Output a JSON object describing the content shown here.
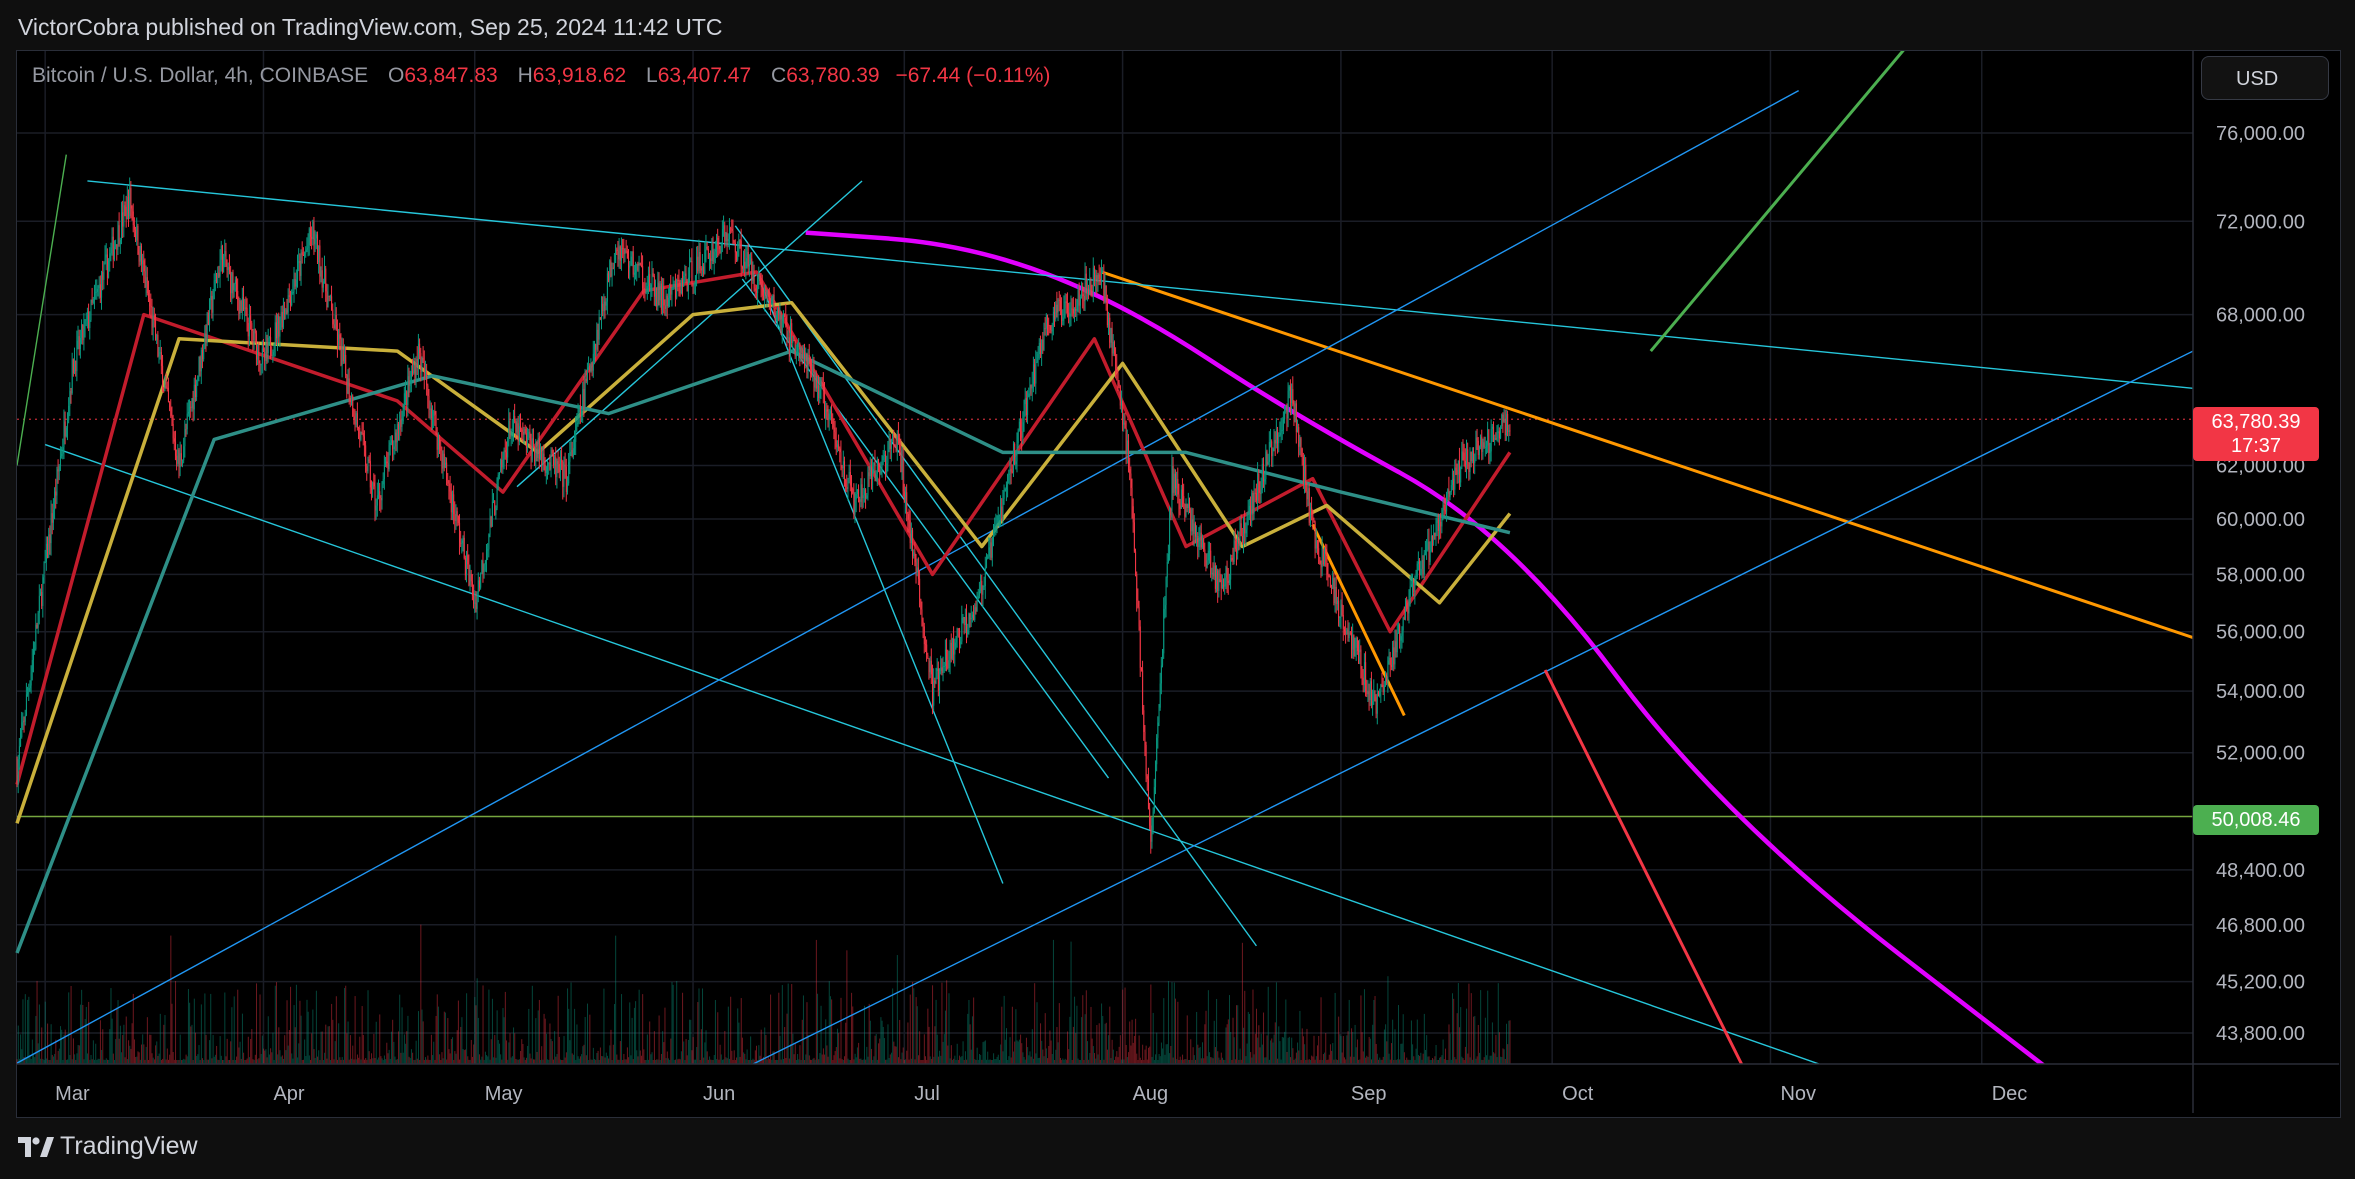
{
  "header": {
    "publisher": "VictorCobra published on TradingView.com, Sep 25, 2024 11:42 UTC"
  },
  "legend": {
    "symbol": "Bitcoin / U.S. Dollar, 4h, COINBASE",
    "open_label": "O",
    "open": "63,847.83",
    "high_label": "H",
    "high": "63,918.62",
    "low_label": "L",
    "low": "63,407.47",
    "close_label": "C",
    "close": "63,780.39",
    "change": "−67.44 (−0.11%)"
  },
  "currency_button": "USD",
  "last_price": {
    "value": "63,780.39",
    "countdown": "17:37",
    "color": "#f23645"
  },
  "support_level": {
    "value": "50,008.46",
    "color": "#4caf50"
  },
  "footer": {
    "brand": "TradingView",
    "logo_icon": "tradingview-logo-icon"
  },
  "colors": {
    "background": "#000000",
    "down": "#f23645",
    "up": "#089981",
    "magenta_curve": "#e100ff",
    "orange_line": "#ff9800",
    "cyan_lines": "#26c6da",
    "blue_lines": "#2196f3",
    "green_line": "#4caf50",
    "red_line": "#f23645"
  },
  "chart_data": {
    "type": "candlestick",
    "title": "Bitcoin / U.S. Dollar, 4h, COINBASE",
    "x_ticks": [
      "Mar",
      "Apr",
      "May",
      "Jun",
      "Jul",
      "Aug",
      "Sep",
      "Oct",
      "Nov",
      "Dec"
    ],
    "y_ticks": [
      "76,000.00",
      "72,000.00",
      "68,000.00",
      "62,000.00",
      "60,000.00",
      "58,000.00",
      "56,000.00",
      "54,000.00",
      "52,000.00",
      "48,400.00",
      "46,800.00",
      "45,200.00",
      "43,800.00"
    ],
    "y_tick_values": [
      76000,
      72000,
      68000,
      62000,
      60000,
      58000,
      56000,
      54000,
      52000,
      48400,
      46800,
      45200,
      43800
    ],
    "y_scale": "log",
    "price_path": [
      {
        "date": "2024-02-26",
        "price": 51500
      },
      {
        "date": "2024-03-05",
        "price": 66000
      },
      {
        "date": "2024-03-13",
        "price": 73000
      },
      {
        "date": "2024-03-20",
        "price": 62000
      },
      {
        "date": "2024-03-26",
        "price": 70500
      },
      {
        "date": "2024-04-01",
        "price": 66000
      },
      {
        "date": "2024-04-08",
        "price": 71500
      },
      {
        "date": "2024-04-17",
        "price": 60500
      },
      {
        "date": "2024-04-23",
        "price": 66500
      },
      {
        "date": "2024-05-01",
        "price": 57000
      },
      {
        "date": "2024-05-06",
        "price": 63500
      },
      {
        "date": "2024-05-14",
        "price": 61500
      },
      {
        "date": "2024-05-21",
        "price": 71000
      },
      {
        "date": "2024-05-28",
        "price": 68500
      },
      {
        "date": "2024-06-06",
        "price": 71500
      },
      {
        "date": "2024-06-10",
        "price": 69500
      },
      {
        "date": "2024-06-19",
        "price": 65000
      },
      {
        "date": "2024-06-24",
        "price": 60500
      },
      {
        "date": "2024-06-30",
        "price": 63000
      },
      {
        "date": "2024-07-05",
        "price": 54000
      },
      {
        "date": "2024-07-12",
        "price": 57500
      },
      {
        "date": "2024-07-21",
        "price": 67500
      },
      {
        "date": "2024-07-29",
        "price": 69800
      },
      {
        "date": "2024-08-02",
        "price": 62000
      },
      {
        "date": "2024-08-05",
        "price": 49000
      },
      {
        "date": "2024-08-08",
        "price": 61500
      },
      {
        "date": "2024-08-15",
        "price": 57500
      },
      {
        "date": "2024-08-25",
        "price": 64800
      },
      {
        "date": "2024-08-28",
        "price": 59500
      },
      {
        "date": "2024-09-06",
        "price": 53500
      },
      {
        "date": "2024-09-12",
        "price": 58000
      },
      {
        "date": "2024-09-18",
        "price": 62000
      },
      {
        "date": "2024-09-25",
        "price": 63780
      }
    ],
    "current_price": 63780.39,
    "horizontal_level": 50008.46,
    "moving_averages": [
      {
        "color": "#c21c2c",
        "points": [
          {
            "date": "2024-02-26",
            "price": 51000
          },
          {
            "date": "2024-03-15",
            "price": 68000
          },
          {
            "date": "2024-04-20",
            "price": 64500
          },
          {
            "date": "2024-05-05",
            "price": 61000
          },
          {
            "date": "2024-05-25",
            "price": 69000
          },
          {
            "date": "2024-06-10",
            "price": 69800
          },
          {
            "date": "2024-07-05",
            "price": 58000
          },
          {
            "date": "2024-07-28",
            "price": 67000
          },
          {
            "date": "2024-08-10",
            "price": 59000
          },
          {
            "date": "2024-08-28",
            "price": 61500
          },
          {
            "date": "2024-09-08",
            "price": 56000
          },
          {
            "date": "2024-09-25",
            "price": 62500
          }
        ]
      },
      {
        "color": "#c9b03b",
        "points": [
          {
            "date": "2024-02-26",
            "price": 49800
          },
          {
            "date": "2024-03-20",
            "price": 67000
          },
          {
            "date": "2024-04-20",
            "price": 66500
          },
          {
            "date": "2024-05-10",
            "price": 62500
          },
          {
            "date": "2024-06-01",
            "price": 68000
          },
          {
            "date": "2024-06-15",
            "price": 68500
          },
          {
            "date": "2024-07-12",
            "price": 59000
          },
          {
            "date": "2024-08-01",
            "price": 66000
          },
          {
            "date": "2024-08-18",
            "price": 59000
          },
          {
            "date": "2024-08-30",
            "price": 60500
          },
          {
            "date": "2024-09-15",
            "price": 57000
          },
          {
            "date": "2024-09-25",
            "price": 60200
          }
        ]
      },
      {
        "color": "#2e8f87",
        "points": [
          {
            "date": "2024-02-26",
            "price": 46000
          },
          {
            "date": "2024-03-25",
            "price": 63000
          },
          {
            "date": "2024-04-25",
            "price": 65500
          },
          {
            "date": "2024-05-20",
            "price": 64000
          },
          {
            "date": "2024-06-15",
            "price": 66500
          },
          {
            "date": "2024-07-15",
            "price": 62500
          },
          {
            "date": "2024-08-10",
            "price": 62500
          },
          {
            "date": "2024-09-01",
            "price": 61000
          },
          {
            "date": "2024-09-25",
            "price": 59500
          }
        ]
      }
    ],
    "drawings": [
      {
        "kind": "curve",
        "color": "#e100ff",
        "points": [
          {
            "date": "2024-06-17",
            "price": 71500
          },
          {
            "date": "2024-07-10",
            "price": 71000
          },
          {
            "date": "2024-08-01",
            "price": 68500
          },
          {
            "date": "2024-08-25",
            "price": 64000
          },
          {
            "date": "2024-09-25",
            "price": 59500
          },
          {
            "date": "2024-10-25",
            "price": 50000
          },
          {
            "date": "2024-12-15",
            "price": 42200
          }
        ]
      },
      {
        "kind": "line",
        "color": "#ff9800",
        "points": [
          {
            "date": "2024-07-29",
            "price": 69800
          },
          {
            "date": "2024-12-31",
            "price": 55800
          }
        ]
      },
      {
        "kind": "line",
        "color": "#ff9800",
        "points": [
          {
            "date": "2024-08-28",
            "price": 59800
          },
          {
            "date": "2024-09-10",
            "price": 53200
          }
        ]
      },
      {
        "kind": "line",
        "color": "#26c6da",
        "points": [
          {
            "date": "2024-03-07",
            "price": 73800
          },
          {
            "date": "2024-12-31",
            "price": 65000
          }
        ]
      },
      {
        "kind": "line",
        "color": "#26c6da",
        "points": [
          {
            "date": "2024-03-01",
            "price": 62800
          },
          {
            "date": "2024-11-20",
            "price": 42200
          }
        ]
      },
      {
        "kind": "line",
        "color": "#2196f3",
        "points": [
          {
            "date": "2024-02-26",
            "price": 43000
          },
          {
            "date": "2024-11-05",
            "price": 78000
          }
        ]
      },
      {
        "kind": "line",
        "color": "#2196f3",
        "points": [
          {
            "date": "2024-06-01",
            "price": 42200
          },
          {
            "date": "2024-12-31",
            "price": 66500
          }
        ]
      },
      {
        "kind": "line",
        "color": "#26c6da",
        "points": [
          {
            "date": "2024-06-07",
            "price": 71800
          },
          {
            "date": "2024-08-20",
            "price": 46200
          }
        ]
      },
      {
        "kind": "line",
        "color": "#26c6da",
        "points": [
          {
            "date": "2024-06-10",
            "price": 69800
          },
          {
            "date": "2024-07-15",
            "price": 48000
          }
        ]
      },
      {
        "kind": "line",
        "color": "#26c6da",
        "points": [
          {
            "date": "2024-06-08",
            "price": 69500
          },
          {
            "date": "2024-07-30",
            "price": 51200
          }
        ]
      },
      {
        "kind": "line",
        "color": "#26c6da",
        "points": [
          {
            "date": "2024-05-07",
            "price": 61200
          },
          {
            "date": "2024-06-25",
            "price": 73800
          }
        ]
      },
      {
        "kind": "line",
        "color": "#4caf50",
        "points": [
          {
            "date": "2024-10-15",
            "price": 66500
          },
          {
            "date": "2024-11-20",
            "price": 80000
          }
        ]
      },
      {
        "kind": "line",
        "color": "#f23645",
        "points": [
          {
            "date": "2024-09-30",
            "price": 54700
          },
          {
            "date": "2024-10-30",
            "price": 42200
          }
        ]
      },
      {
        "kind": "line",
        "color": "#4caf50",
        "points": [
          {
            "date": "2024-02-26",
            "price": 62000
          },
          {
            "date": "2024-03-04",
            "price": 75000
          }
        ]
      }
    ]
  }
}
